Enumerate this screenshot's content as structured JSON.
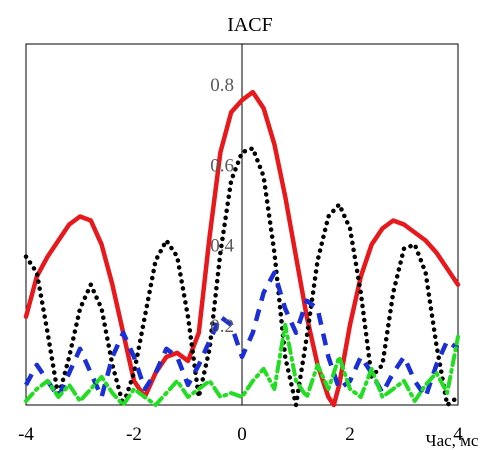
{
  "chart_data": {
    "type": "line",
    "title": "IACF",
    "xlabel": "Час, мс",
    "ylabel": "",
    "xlim": [
      -4,
      4
    ],
    "ylim": [
      0,
      0.9
    ],
    "xticks": [
      -4,
      -2,
      0,
      2,
      4
    ],
    "xtick_labels": [
      "-4",
      "-2",
      "0",
      "2",
      "4"
    ],
    "yticks": [
      0.2,
      0.4,
      0.6,
      0.8
    ],
    "ytick_labels": [
      "0.2",
      "0.4",
      "0.6",
      "0.8"
    ],
    "grid": false,
    "legend": "none",
    "series": [
      {
        "color": "#e8191c",
        "style": "solid",
        "x": [
          -4.0,
          -3.8,
          -3.6,
          -3.4,
          -3.2,
          -3.0,
          -2.8,
          -2.6,
          -2.4,
          -2.2,
          -2.0,
          -1.8,
          -1.6,
          -1.4,
          -1.2,
          -1.0,
          -0.8,
          -0.6,
          -0.4,
          -0.2,
          0.0,
          0.2,
          0.4,
          0.6,
          0.8,
          1.0,
          1.2,
          1.4,
          1.6,
          1.7,
          1.8,
          2.0,
          2.2,
          2.4,
          2.6,
          2.8,
          3.0,
          3.2,
          3.4,
          3.6,
          3.8,
          4.0
        ],
        "y": [
          0.22,
          0.32,
          0.37,
          0.41,
          0.45,
          0.47,
          0.46,
          0.4,
          0.3,
          0.18,
          0.06,
          0.02,
          0.08,
          0.12,
          0.13,
          0.11,
          0.18,
          0.42,
          0.63,
          0.73,
          0.76,
          0.78,
          0.74,
          0.65,
          0.52,
          0.37,
          0.22,
          0.1,
          0.02,
          0.0,
          0.05,
          0.2,
          0.32,
          0.4,
          0.44,
          0.46,
          0.45,
          0.43,
          0.41,
          0.38,
          0.34,
          0.3
        ]
      },
      {
        "color": "#000000",
        "style": "dotted",
        "x": [
          -4.0,
          -3.8,
          -3.6,
          -3.4,
          -3.2,
          -3.0,
          -2.8,
          -2.6,
          -2.4,
          -2.2,
          -2.0,
          -1.8,
          -1.6,
          -1.4,
          -1.2,
          -1.0,
          -0.8,
          -0.6,
          -0.4,
          -0.2,
          0.0,
          0.2,
          0.4,
          0.6,
          0.8,
          1.0,
          1.2,
          1.4,
          1.6,
          1.8,
          2.0,
          2.2,
          2.4,
          2.6,
          2.8,
          3.0,
          3.2,
          3.4,
          3.6,
          3.8,
          4.0
        ],
        "y": [
          0.37,
          0.33,
          0.18,
          0.02,
          0.12,
          0.24,
          0.3,
          0.24,
          0.1,
          0.0,
          0.08,
          0.22,
          0.36,
          0.41,
          0.37,
          0.22,
          0.02,
          0.14,
          0.38,
          0.56,
          0.63,
          0.64,
          0.57,
          0.38,
          0.12,
          0.0,
          0.17,
          0.36,
          0.47,
          0.5,
          0.44,
          0.28,
          0.07,
          0.1,
          0.28,
          0.39,
          0.4,
          0.33,
          0.15,
          0.0,
          0.02
        ]
      },
      {
        "color": "#1a2fd6",
        "style": "dashed",
        "x": [
          -4.0,
          -3.8,
          -3.6,
          -3.4,
          -3.2,
          -3.0,
          -2.8,
          -2.6,
          -2.4,
          -2.2,
          -2.0,
          -1.8,
          -1.6,
          -1.4,
          -1.2,
          -1.0,
          -0.8,
          -0.6,
          -0.4,
          -0.2,
          0.0,
          0.2,
          0.4,
          0.6,
          0.8,
          1.0,
          1.2,
          1.4,
          1.6,
          1.8,
          2.0,
          2.2,
          2.4,
          2.6,
          2.8,
          3.0,
          3.2,
          3.4,
          3.6,
          3.8,
          4.0
        ],
        "y": [
          0.05,
          0.1,
          0.06,
          0.02,
          0.08,
          0.14,
          0.08,
          0.02,
          0.12,
          0.18,
          0.12,
          0.04,
          0.08,
          0.14,
          0.12,
          0.05,
          0.1,
          0.16,
          0.22,
          0.2,
          0.12,
          0.18,
          0.28,
          0.33,
          0.24,
          0.18,
          0.26,
          0.24,
          0.12,
          0.04,
          0.06,
          0.12,
          0.08,
          0.03,
          0.08,
          0.12,
          0.06,
          0.02,
          0.1,
          0.16,
          0.14
        ]
      },
      {
        "color": "#22dd22",
        "style": "dashdot",
        "x": [
          -4.0,
          -3.8,
          -3.6,
          -3.4,
          -3.2,
          -3.0,
          -2.8,
          -2.6,
          -2.4,
          -2.2,
          -2.0,
          -1.8,
          -1.6,
          -1.4,
          -1.2,
          -1.0,
          -0.8,
          -0.6,
          -0.4,
          -0.2,
          0.0,
          0.2,
          0.4,
          0.6,
          0.8,
          1.0,
          1.2,
          1.4,
          1.6,
          1.8,
          2.0,
          2.2,
          2.4,
          2.6,
          2.8,
          3.0,
          3.2,
          3.4,
          3.6,
          3.8,
          4.0
        ],
        "y": [
          0.01,
          0.04,
          0.06,
          0.02,
          0.05,
          0.01,
          0.04,
          0.07,
          0.03,
          0.0,
          0.04,
          0.02,
          0.0,
          0.03,
          0.06,
          0.02,
          0.04,
          0.06,
          0.02,
          0.03,
          0.02,
          0.06,
          0.09,
          0.04,
          0.2,
          0.06,
          0.02,
          0.1,
          0.04,
          0.12,
          0.04,
          0.02,
          0.09,
          0.02,
          0.04,
          0.06,
          0.01,
          0.05,
          0.08,
          0.03,
          0.17
        ]
      }
    ]
  }
}
